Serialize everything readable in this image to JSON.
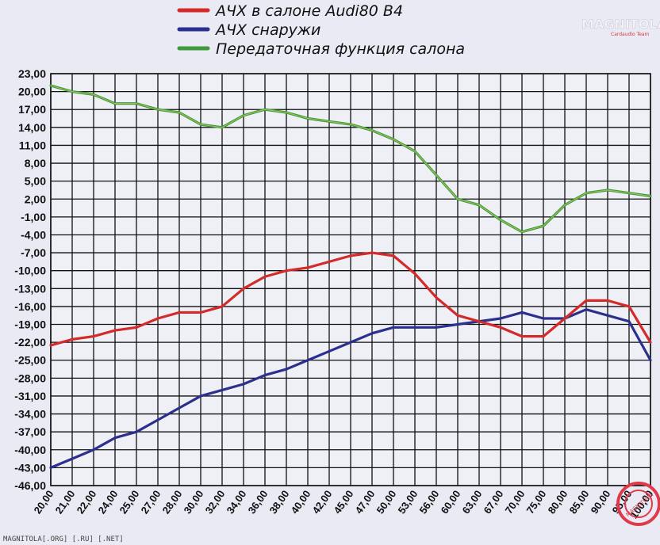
{
  "chart_data": {
    "type": "line",
    "title": "",
    "xlabel": "",
    "ylabel": "",
    "categories": [
      "20,00",
      "21,00",
      "22,00",
      "24,00",
      "25,00",
      "27,00",
      "28,00",
      "30,00",
      "32,00",
      "34,00",
      "36,00",
      "38,00",
      "40,00",
      "42,00",
      "45,00",
      "47,00",
      "50,00",
      "53,00",
      "56,00",
      "60,00",
      "63,00",
      "67,00",
      "70,00",
      "75,00",
      "80,00",
      "85,00",
      "90,00",
      "95,00",
      "100,00"
    ],
    "y_ticks": [
      "23,00",
      "20,00",
      "17,00",
      "14,00",
      "11,00",
      "8,00",
      "5,00",
      "2,00",
      "-1,00",
      "-4,00",
      "-7,00",
      "-10,00",
      "-13,00",
      "-16,00",
      "-19,00",
      "-22,00",
      "-25,00",
      "-28,00",
      "-31,00",
      "-34,00",
      "-37,00",
      "-40,00",
      "-43,00",
      "-46,00"
    ],
    "ylim": [
      -46,
      23
    ],
    "grid": true,
    "legend_position": "top-center",
    "series": [
      {
        "name": "АЧХ в салоне Audi80 B4",
        "color": "#d42a2a",
        "values": [
          -22.5,
          -21.5,
          -21,
          -20,
          -19.5,
          -18,
          -17,
          -17,
          -16,
          -13,
          -11,
          -10,
          -9.5,
          -8.5,
          -7.5,
          -7,
          -7.5,
          -10.5,
          -14.5,
          -17.5,
          -18.5,
          -19.5,
          -21,
          -21,
          -18,
          -15,
          -15,
          -16,
          -22
        ]
      },
      {
        "name": "АЧХ снаружи",
        "color": "#2b2f8e",
        "values": [
          -43,
          -41.5,
          -40,
          -38,
          -37,
          -35,
          -33,
          -31,
          -30,
          -29,
          -27.5,
          -26.5,
          -25,
          -23.5,
          -22,
          -20.5,
          -19.5,
          -19.5,
          -19.5,
          -19,
          -18.5,
          -18,
          -17,
          -18,
          -18,
          -16.5,
          -17.5,
          -18.5,
          -25
        ]
      },
      {
        "name": "Передаточная функция салона",
        "color": "#3f9a3c",
        "values": [
          21,
          20,
          19.5,
          18,
          18,
          17,
          16.5,
          14.5,
          14,
          16,
          17,
          16.5,
          15.5,
          15,
          14.5,
          13.5,
          12,
          10,
          6,
          2,
          1,
          -1.5,
          -3.5,
          -2.5,
          1,
          3,
          3.5,
          3,
          2.5
        ]
      }
    ]
  },
  "branding": {
    "logo": "MAGNITOLA",
    "logo_sub": "Cardaudio Team",
    "watermark": "MAGNITOLA",
    "footer": "MAGNITOLA[.ORG] [.RU] [.NET]"
  }
}
